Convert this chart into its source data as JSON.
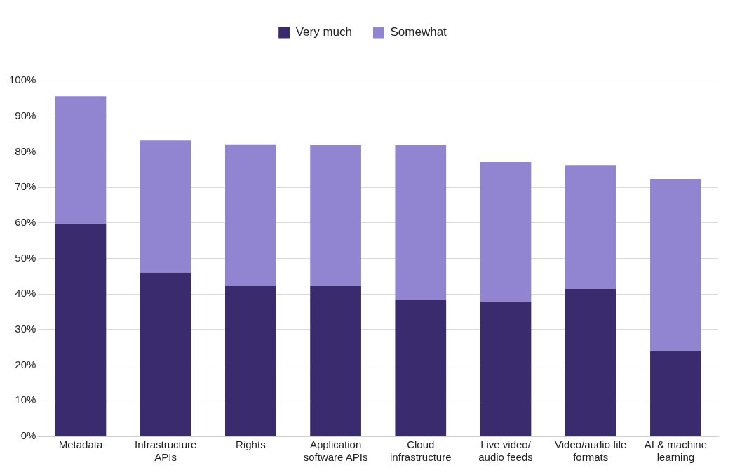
{
  "chart_data": {
    "type": "bar",
    "stacked": true,
    "categories": [
      "Metadata",
      "Infrastructure APIs",
      "Rights",
      "Application software APIs",
      "Cloud infrastructure",
      "Live video/audio feeds",
      "Video/audio file formats",
      "AI & machine learning"
    ],
    "series": [
      {
        "name": "Very much",
        "color": "#3a2b6e",
        "values": [
          59.7,
          46.0,
          42.4,
          42.2,
          38.3,
          37.8,
          41.4,
          23.9
        ]
      },
      {
        "name": "Somewhat",
        "color": "#9185d1",
        "values": [
          35.9,
          37.2,
          39.7,
          39.7,
          43.6,
          39.3,
          34.9,
          48.5
        ]
      }
    ],
    "ylim": [
      0,
      100
    ],
    "yticks": [
      {
        "value": 0,
        "label": "0%"
      },
      {
        "value": 10,
        "label": "10%"
      },
      {
        "value": 20,
        "label": "20%"
      },
      {
        "value": 30,
        "label": "30%"
      },
      {
        "value": 40,
        "label": "40%"
      },
      {
        "value": 50,
        "label": "50%"
      },
      {
        "value": 60,
        "label": "60%"
      },
      {
        "value": 70,
        "label": "70%"
      },
      {
        "value": 80,
        "label": "80%"
      },
      {
        "value": 90,
        "label": "90%"
      },
      {
        "value": 100,
        "label": "100%"
      }
    ],
    "grid": "y",
    "legend": "top"
  }
}
